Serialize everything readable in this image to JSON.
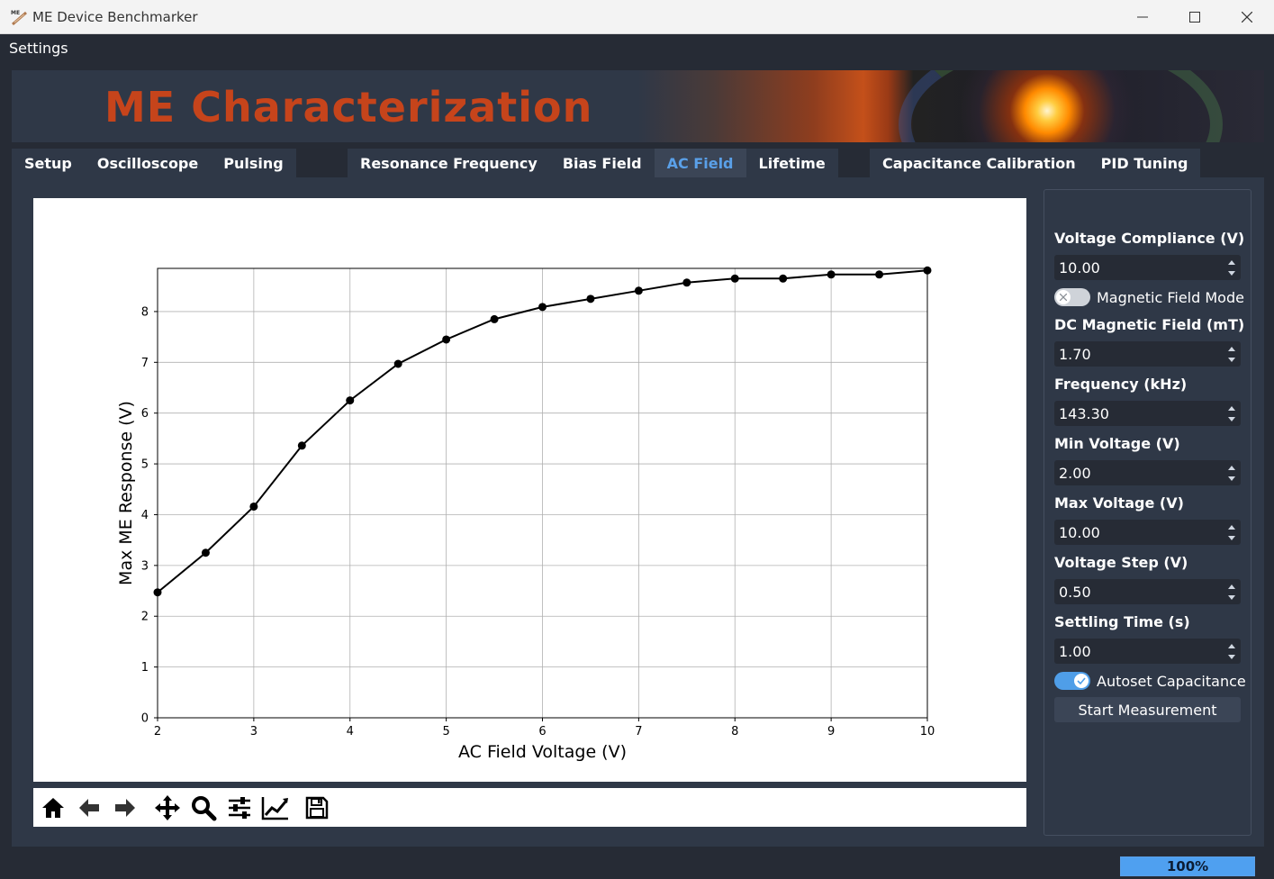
{
  "window": {
    "title": "ME Device Benchmarker"
  },
  "menu": {
    "settings": "Settings"
  },
  "banner": {
    "title": "ME Characterization"
  },
  "tabs": {
    "group1": [
      {
        "label": "Setup"
      },
      {
        "label": "Oscilloscope"
      },
      {
        "label": "Pulsing"
      }
    ],
    "group2": [
      {
        "label": "Resonance Frequency"
      },
      {
        "label": "Bias Field"
      },
      {
        "label": "AC Field",
        "active": true
      },
      {
        "label": "Lifetime"
      }
    ],
    "group3": [
      {
        "label": "Capacitance Calibration"
      },
      {
        "label": "PID Tuning"
      }
    ]
  },
  "panel": {
    "voltage_compliance": {
      "label": "Voltage Compliance (V)",
      "value": "10.00"
    },
    "magnetic_field_mode": {
      "label": "Magnetic Field Mode",
      "on": false
    },
    "dc_magnetic_field": {
      "label": "DC Magnetic Field (mT)",
      "value": "1.70"
    },
    "frequency": {
      "label": "Frequency (kHz)",
      "value": "143.30"
    },
    "min_voltage": {
      "label": "Min Voltage (V)",
      "value": "2.00"
    },
    "max_voltage": {
      "label": "Max Voltage (V)",
      "value": "10.00"
    },
    "voltage_step": {
      "label": "Voltage Step (V)",
      "value": "0.50"
    },
    "settling_time": {
      "label": "Settling Time (s)",
      "value": "1.00"
    },
    "autoset_capacitance": {
      "label": "Autoset Capacitance",
      "on": true
    },
    "start_button": "Start Measurement"
  },
  "toolbar_icons": [
    "home-icon",
    "back-arrow-icon",
    "forward-arrow-icon",
    "pan-move-icon",
    "zoom-magnifier-icon",
    "subplot-config-icon",
    "axes-edit-icon",
    "save-disk-icon"
  ],
  "progress": {
    "value": 100,
    "label": "100%"
  },
  "colors": {
    "accent": "#5aa0e8",
    "banner_text": "#c6441b",
    "background": "#262b35",
    "panel": "#2f3847"
  },
  "chart_data": {
    "type": "line",
    "title": "",
    "xlabel": "AC Field Voltage (V)",
    "ylabel": "Max ME Response (V)",
    "xlim": [
      2,
      10
    ],
    "ylim": [
      0,
      8.85
    ],
    "xticks": [
      "2",
      "3",
      "4",
      "5",
      "6",
      "7",
      "8",
      "9",
      "10"
    ],
    "yticks": [
      "0",
      "1",
      "2",
      "3",
      "4",
      "5",
      "6",
      "7",
      "8"
    ],
    "grid": true,
    "x": [
      2.0,
      2.5,
      3.0,
      3.5,
      4.0,
      4.5,
      5.0,
      5.5,
      6.0,
      6.5,
      7.0,
      7.5,
      8.0,
      8.5,
      9.0,
      9.5,
      10.0
    ],
    "y": [
      2.47,
      3.25,
      4.16,
      5.36,
      6.25,
      6.97,
      7.45,
      7.85,
      8.09,
      8.25,
      8.41,
      8.57,
      8.65,
      8.65,
      8.73,
      8.73,
      8.81
    ]
  }
}
